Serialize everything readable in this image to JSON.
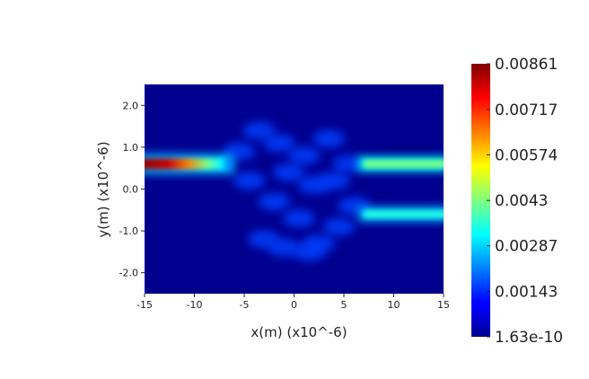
{
  "chart_data": {
    "type": "heatmap",
    "title": "",
    "xlabel": "x(m) (x10^-6)",
    "ylabel": "y(m) (x10^-6)",
    "xlim": [
      -15,
      15
    ],
    "ylim": [
      -2.5,
      2.5
    ],
    "x_ticks": [
      -15,
      -10,
      -5,
      0,
      5,
      10,
      15
    ],
    "x_tick_labels": [
      "-15",
      "-10",
      "-5",
      "0",
      "5",
      "10",
      "15"
    ],
    "y_ticks": [
      2.0,
      1.0,
      0.0,
      -1.0,
      -2.0
    ],
    "y_tick_labels": [
      "2.0",
      "1.0",
      "0.0",
      "-1.0",
      "-2.0"
    ],
    "colormap": "jet",
    "colorbar": {
      "min": 1.63e-10,
      "max": 0.00861,
      "ticks": [
        0.00861,
        0.00717,
        0.00574,
        0.0043,
        0.00287,
        0.00143,
        1.63e-10
      ],
      "tick_labels": [
        "0.00861",
        "0.00717",
        "0.00574",
        "0.0043",
        "0.00287",
        "0.00143",
        "1.63e-10"
      ]
    },
    "features": {
      "input_waveguide": {
        "x_range": [
          -15,
          -6
        ],
        "y": 0.6,
        "peak": 0.00861
      },
      "output_waveguides": [
        {
          "x_range": [
            7,
            15
          ],
          "y": 0.6,
          "level": 0.0043
        },
        {
          "x_range": [
            7,
            15
          ],
          "y": -0.6,
          "level": 0.0035
        }
      ],
      "interference_region": {
        "x_range": [
          -6,
          7
        ],
        "y_range": [
          -1.6,
          1.6
        ],
        "level": 0.0018
      }
    }
  },
  "colors": {
    "background": "#00008f",
    "frame": "#ffffff"
  }
}
